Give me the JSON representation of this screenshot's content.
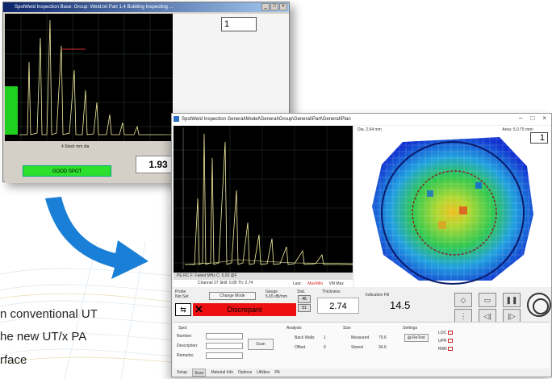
{
  "old_window": {
    "title": "SpotWeld Inspection Base: Group: Weld.txt  Part 1.4 Building  Inspecting ...",
    "page_number": "1",
    "controls_label": "4 Stack mm dia",
    "status_text": "GOOD SPOT",
    "thickness_value": "1.93"
  },
  "overlay_text": {
    "line1": "n conventional UT",
    "line2": "he new UT/x PA",
    "line3": "rface"
  },
  "new_window": {
    "title": "SpotWeld Inspection General\\Model\\General\\Group\\General\\Part\\General\\Plan",
    "window_buttons": [
      "–",
      "□",
      "×"
    ],
    "diameter_label": "Dia. 2.64 mm",
    "area_label": "Area: 5.0.75 mm²",
    "page_number": "1",
    "plot_bar": "PE   RC   F: Failed MHz   C: 5.03 @F",
    "plot_bar2": "Channel 27 Skill: 0.85  Th: 2.74",
    "last_label": "Last:",
    "last_values": [
      "Max/Min",
      "VM Max"
    ],
    "probe_label": "Probe",
    "probe_value": "Not Set",
    "change_mode": "Change Mode",
    "gauge_label": "Gauge",
    "gauge_value": "5.65 dB/mm",
    "stat_label": "Stat.",
    "stat_btn_1": "46",
    "stat_btn_2": "51",
    "thickness_label": "Thickness",
    "thickness_value": "2.74",
    "indication_label": "Indication Fill",
    "indication_value": "14.5",
    "result_text": "Discrepant",
    "bottom": {
      "spot_title": "Spot",
      "number_label": "Number:",
      "description_label": "Description:",
      "remarks_label": "Remarks:",
      "scan_btn": "Scan",
      "analysis_title": "Analysis",
      "back_walls_label": "Back Walls",
      "back_walls_value": "1",
      "offset_label": "Offset",
      "offset_value": "0",
      "size_title": "Size",
      "measured_label": "Measured",
      "measured_value": "79.6",
      "stored_label": "Stored",
      "stored_value": "34.6",
      "settings_title": "Settings",
      "retest_label": "ReTest",
      "loc_label": "LOC",
      "upr_label": "UPR",
      "rwh_label": "RWh"
    },
    "tabs": [
      "Setup",
      "Scan",
      "Material Info",
      "Options",
      "Utilities",
      "PA"
    ]
  },
  "colors": {
    "old_status": "#2ee02e",
    "reject": "#ee1010",
    "arrow": "#1a7fd6",
    "cscan_outline": "#0a1a6a"
  }
}
